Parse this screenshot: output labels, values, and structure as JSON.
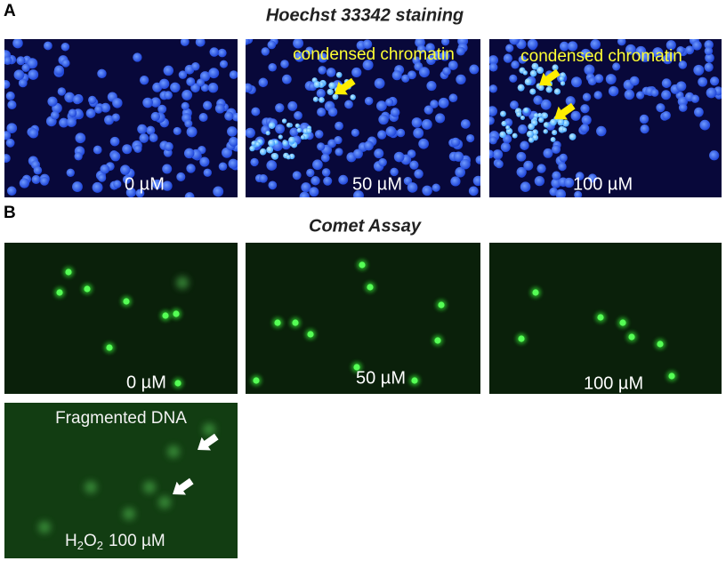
{
  "panel_a": {
    "label": "A",
    "title": "Hoechst 33342 staining",
    "images": [
      {
        "label": "0 µM"
      },
      {
        "label": "50 µM",
        "annotation": "condensed chromatin"
      },
      {
        "label": "100 µM",
        "annotation": "condensed chromatin"
      }
    ]
  },
  "panel_b": {
    "label": "B",
    "title": "Comet Assay",
    "images": [
      {
        "label": "0 µM"
      },
      {
        "label": "50 µM"
      },
      {
        "label": "100 µM"
      },
      {
        "annotation": "Fragmented DNA",
        "label_parts": [
          "H",
          "2",
          "O",
          "2",
          "100 µM"
        ]
      }
    ]
  }
}
